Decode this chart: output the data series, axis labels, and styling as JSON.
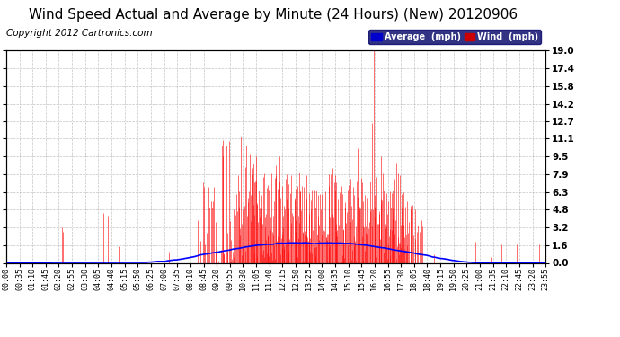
{
  "title": "Wind Speed Actual and Average by Minute (24 Hours) (New) 20120906",
  "copyright": "Copyright 2012 Cartronics.com",
  "ylabel_right_ticks": [
    0.0,
    1.6,
    3.2,
    4.8,
    6.3,
    7.9,
    9.5,
    11.1,
    12.7,
    14.2,
    15.8,
    17.4,
    19.0
  ],
  "ylim": [
    0.0,
    19.0
  ],
  "background_color": "#ffffff",
  "plot_bg_color": "#ffffff",
  "grid_color": "#aaaaaa",
  "wind_color": "#ff0000",
  "avg_color": "#0000ff",
  "title_fontsize": 11,
  "copyright_fontsize": 7.5,
  "legend_avg_color": "#0000cc",
  "legend_wind_color": "#cc0000",
  "xtick_labels": [
    "00:00",
    "00:35",
    "01:10",
    "01:45",
    "02:20",
    "02:55",
    "03:30",
    "04:05",
    "04:40",
    "05:15",
    "05:50",
    "06:25",
    "07:00",
    "07:35",
    "08:10",
    "08:45",
    "09:20",
    "09:55",
    "10:30",
    "11:05",
    "11:40",
    "12:15",
    "12:50",
    "13:25",
    "14:00",
    "14:35",
    "15:10",
    "15:45",
    "16:20",
    "16:55",
    "17:30",
    "18:05",
    "18:40",
    "19:15",
    "19:50",
    "20:25",
    "21:00",
    "21:35",
    "22:10",
    "22:45",
    "23:20",
    "23:55"
  ]
}
